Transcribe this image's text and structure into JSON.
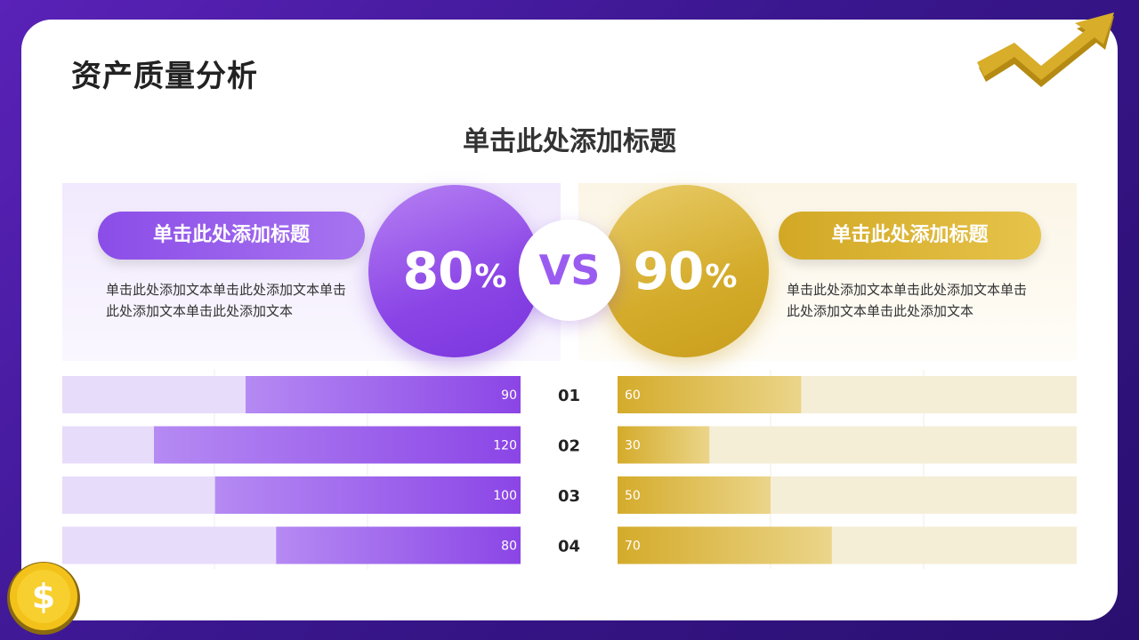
{
  "page": {
    "title": "资产质量分析",
    "subtitle": "单击此处添加标题"
  },
  "left": {
    "pill_label": "单击此处添加标题",
    "description": "单击此处添加文本单击此处添加文本单击此处添加文本单击此处添加文本",
    "percent_value": "80",
    "percent_sign": "%",
    "color": "#8b45e6"
  },
  "right": {
    "pill_label": "单击此处添加标题",
    "description": "单击此处添加文本单击此处添加文本单击此处添加文本单击此处添加文本",
    "percent_value": "90",
    "percent_sign": "%",
    "color": "#d4ab2a"
  },
  "vs_label": "VS",
  "icons": [
    "trend-arrow-icon",
    "dollar-coin-icon"
  ],
  "chart_data": {
    "type": "bar",
    "orientation": "horizontal-butterfly",
    "categories": [
      "01",
      "02",
      "03",
      "04"
    ],
    "series": [
      {
        "values": [
          90,
          120,
          100,
          80
        ],
        "color": "#8b45e6",
        "track_color": "#e8dcfb"
      },
      {
        "values": [
          60,
          30,
          50,
          70
        ],
        "color": "#d4ab2a",
        "track_color": "#f5eed6"
      }
    ],
    "left_axis_max": 150,
    "right_axis_max": 150,
    "grid": true
  }
}
